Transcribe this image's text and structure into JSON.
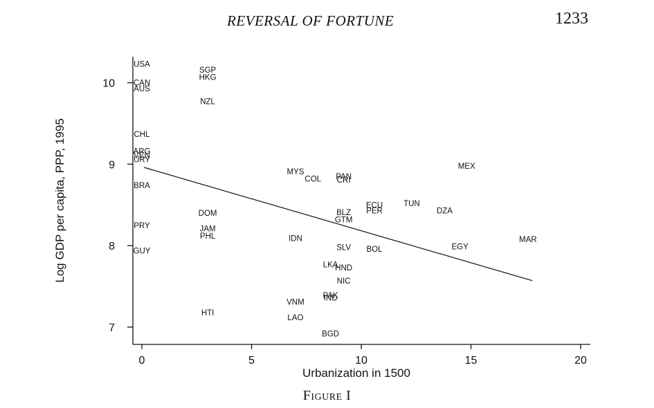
{
  "header": {
    "running_title": "REVERSAL OF FORTUNE",
    "page_number": "1233"
  },
  "caption": "Figure I",
  "chart_data": {
    "type": "scatter",
    "xlabel": "Urbanization in 1500",
    "ylabel": "Log GDP per capita, PPP, 1995",
    "xlim": [
      -0.4,
      21
    ],
    "ylim": [
      6.9,
      10.45
    ],
    "xticks": [
      0,
      5,
      10,
      15,
      20
    ],
    "yticks": [
      7,
      8,
      9,
      10
    ],
    "grid": false,
    "points": [
      {
        "label": "USA",
        "x": 0,
        "y": 10.23
      },
      {
        "label": "CAN",
        "x": 0,
        "y": 10.0
      },
      {
        "label": "AUS",
        "x": 0,
        "y": 9.93
      },
      {
        "label": "CHL",
        "x": 0,
        "y": 9.37
      },
      {
        "label": "ARG",
        "x": 0,
        "y": 9.16
      },
      {
        "label": "VEN",
        "x": 0,
        "y": 9.11
      },
      {
        "label": "URY",
        "x": 0,
        "y": 9.06
      },
      {
        "label": "BRA",
        "x": 0,
        "y": 8.74
      },
      {
        "label": "PRY",
        "x": 0,
        "y": 8.25
      },
      {
        "label": "GUY",
        "x": 0,
        "y": 7.94
      },
      {
        "label": "SGP",
        "x": 3,
        "y": 10.16
      },
      {
        "label": "HKG",
        "x": 3,
        "y": 10.07
      },
      {
        "label": "NZL",
        "x": 3,
        "y": 9.77
      },
      {
        "label": "DOM",
        "x": 3,
        "y": 8.4
      },
      {
        "label": "JAM",
        "x": 3,
        "y": 8.21
      },
      {
        "label": "PHL",
        "x": 3,
        "y": 8.12
      },
      {
        "label": "HTI",
        "x": 3,
        "y": 7.18
      },
      {
        "label": "MYS",
        "x": 7,
        "y": 8.91
      },
      {
        "label": "COL",
        "x": 7.8,
        "y": 8.82
      },
      {
        "label": "PAN",
        "x": 9.2,
        "y": 8.85
      },
      {
        "label": "CRI",
        "x": 9.2,
        "y": 8.81
      },
      {
        "label": "IDN",
        "x": 7,
        "y": 8.09
      },
      {
        "label": "VNM",
        "x": 7,
        "y": 7.31
      },
      {
        "label": "LAO",
        "x": 7,
        "y": 7.12
      },
      {
        "label": "BLZ",
        "x": 9.2,
        "y": 8.41
      },
      {
        "label": "GTM",
        "x": 9.2,
        "y": 8.32
      },
      {
        "label": "SLV",
        "x": 9.2,
        "y": 7.98
      },
      {
        "label": "LKA",
        "x": 8.6,
        "y": 7.77
      },
      {
        "label": "HND",
        "x": 9.2,
        "y": 7.73
      },
      {
        "label": "NIC",
        "x": 9.2,
        "y": 7.57
      },
      {
        "label": "PAK",
        "x": 8.6,
        "y": 7.39
      },
      {
        "label": "IND",
        "x": 8.6,
        "y": 7.36
      },
      {
        "label": "BGD",
        "x": 8.6,
        "y": 6.92
      },
      {
        "label": "ECU",
        "x": 10.6,
        "y": 8.5
      },
      {
        "label": "PER",
        "x": 10.6,
        "y": 8.43
      },
      {
        "label": "BOL",
        "x": 10.6,
        "y": 7.96
      },
      {
        "label": "TUN",
        "x": 12.3,
        "y": 8.52
      },
      {
        "label": "DZA",
        "x": 13.8,
        "y": 8.43
      },
      {
        "label": "EGY",
        "x": 14.5,
        "y": 7.99
      },
      {
        "label": "MEX",
        "x": 14.8,
        "y": 8.98
      },
      {
        "label": "MAR",
        "x": 17.6,
        "y": 8.08
      }
    ],
    "fit_line": {
      "x": [
        0.1,
        17.8
      ],
      "y": [
        8.96,
        7.57
      ]
    }
  }
}
